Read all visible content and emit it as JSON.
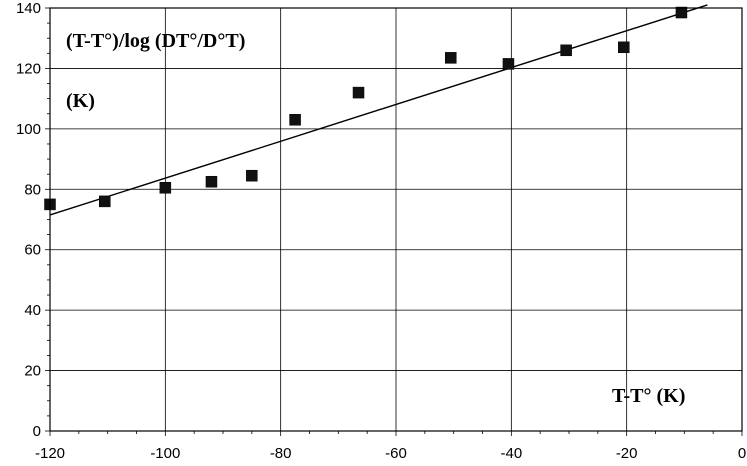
{
  "chart_data": {
    "type": "scatter",
    "title": "",
    "ylabel_line1": "(T-T°)/log (DT°/D°T)",
    "ylabel_line2": "(K)",
    "xlabel": "T-T° (K)",
    "xlim": [
      -120,
      0
    ],
    "ylim": [
      0,
      140
    ],
    "x_ticks": [
      -120,
      -100,
      -80,
      -60,
      -40,
      -20,
      0
    ],
    "y_ticks": [
      0,
      20,
      40,
      60,
      80,
      100,
      120,
      140
    ],
    "grid": true,
    "series": [
      {
        "marker": "square",
        "color": "#111111",
        "points": [
          {
            "x": -120,
            "y": 75
          },
          {
            "x": -110.5,
            "y": 76
          },
          {
            "x": -100,
            "y": 80.5
          },
          {
            "x": -92,
            "y": 82.5
          },
          {
            "x": -85,
            "y": 84.5
          },
          {
            "x": -77.5,
            "y": 103
          },
          {
            "x": -66.5,
            "y": 112
          },
          {
            "x": -50.5,
            "y": 123.5
          },
          {
            "x": -40.5,
            "y": 121.5
          },
          {
            "x": -30.5,
            "y": 126
          },
          {
            "x": -20.5,
            "y": 127
          },
          {
            "x": -10.5,
            "y": 138.5
          }
        ]
      }
    ],
    "fit_line": {
      "color": "#000000",
      "start": {
        "x": -120,
        "y": 71.5
      },
      "end": {
        "x": -6,
        "y": 141
      }
    }
  }
}
